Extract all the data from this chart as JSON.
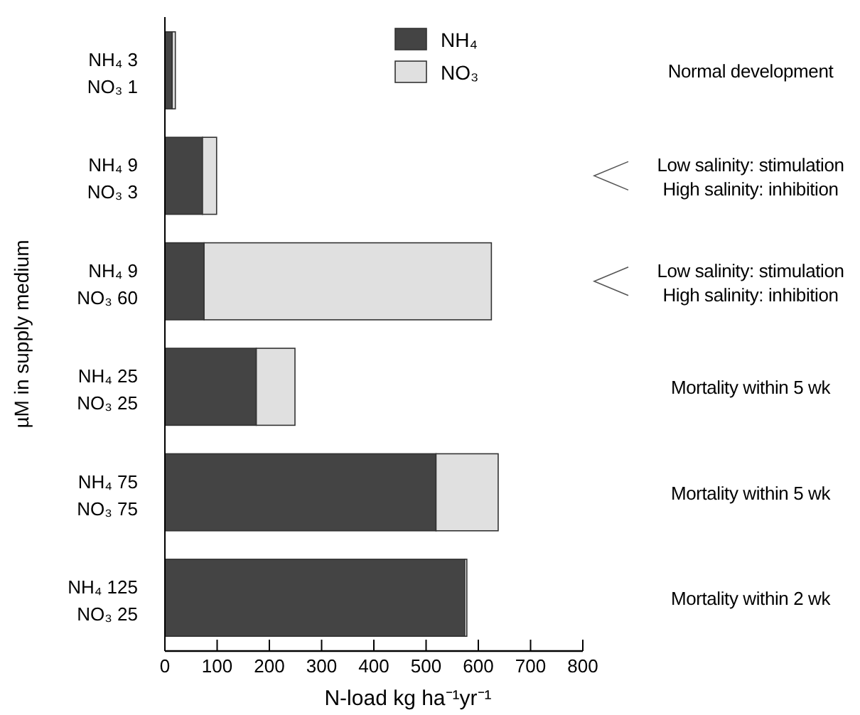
{
  "chart_data": {
    "type": "bar",
    "orientation": "horizontal",
    "stacked": true,
    "categories": [
      "NH₄ 3\nNO₃ 1",
      "NH₄ 9\nNO₃ 3",
      "NH₄ 9\nNO₃ 60",
      "NH₄ 25\nNO₃ 25",
      "NH₄ 75\nNO₃ 75",
      "NH₄ 125\nNO₃ 25"
    ],
    "series": [
      {
        "name": "NH₄",
        "color": "#444444",
        "values": [
          14,
          72,
          75,
          175,
          519,
          574
        ]
      },
      {
        "name": "NO₃",
        "color": "#e0e0e0",
        "values": [
          6,
          27,
          550,
          74,
          119,
          4
        ]
      }
    ],
    "xlim": [
      0,
      800
    ],
    "xticks": [
      0,
      100,
      200,
      300,
      400,
      500,
      600,
      700,
      800
    ],
    "xlabel": "N-load kg ha⁻¹yr⁻¹",
    "ylabel": "µM in supply medium",
    "legend": "top",
    "annotations": [
      "Normal development",
      "Low salinity: stimulation\nHigh salinity: inhibition",
      "Low salinity: stimulation\nHigh salinity: inhibition",
      "Mortality within 5 wk",
      "Mortality within 5 wk",
      "Mortality within 2 wk"
    ]
  }
}
